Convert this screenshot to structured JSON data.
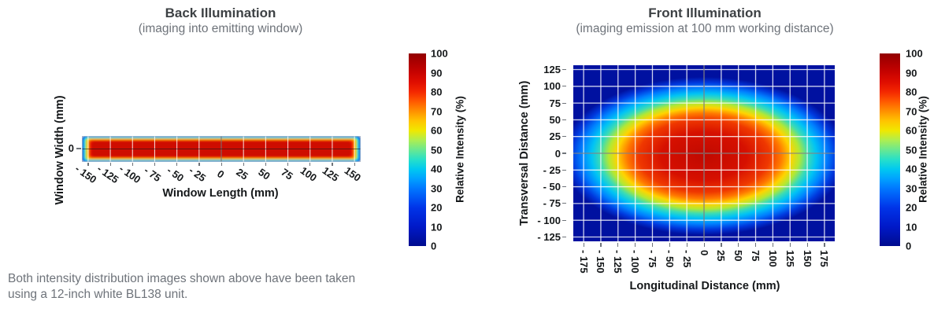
{
  "figure": {
    "caption_lines": [
      "Both intensity distribution images shown above have been taken",
      "using a 12-inch white BL138 unit."
    ]
  },
  "colorbar": {
    "label": "Relative Intensity (%)",
    "ticks": [
      0,
      10,
      20,
      30,
      40,
      50,
      60,
      70,
      80,
      90,
      100
    ]
  },
  "colormap": [
    {
      "v": 0,
      "c": "#000c8e"
    },
    {
      "v": 10,
      "c": "#0019c8"
    },
    {
      "v": 20,
      "c": "#0034e8"
    },
    {
      "v": 25,
      "c": "#0056f5"
    },
    {
      "v": 30,
      "c": "#0078ff"
    },
    {
      "v": 35,
      "c": "#00a2ff"
    },
    {
      "v": 40,
      "c": "#00c9f0"
    },
    {
      "v": 45,
      "c": "#28e0c8"
    },
    {
      "v": 50,
      "c": "#6ae890"
    },
    {
      "v": 55,
      "c": "#aeee50"
    },
    {
      "v": 60,
      "c": "#f0e800"
    },
    {
      "v": 65,
      "c": "#ffc400"
    },
    {
      "v": 70,
      "c": "#ff9000"
    },
    {
      "v": 75,
      "c": "#ff5a00"
    },
    {
      "v": 80,
      "c": "#f42800"
    },
    {
      "v": 85,
      "c": "#e00e00"
    },
    {
      "v": 90,
      "c": "#c80300"
    },
    {
      "v": 95,
      "c": "#ae0000"
    },
    {
      "v": 100,
      "c": "#920000"
    }
  ],
  "back": {
    "title": "Back Illumination",
    "subtitle": "(imaging into emitting window)",
    "xlabel": "Window Length (mm)",
    "ylabel": "Window Width (mm)",
    "x_range": [
      -157,
      157
    ],
    "y_range": [
      -14.7,
      14.7
    ],
    "x_ticks": {
      "values": [
        -150,
        -125,
        -100,
        -75,
        -50,
        -25,
        0,
        25,
        50,
        75,
        100,
        125,
        150
      ],
      "labels": [
        "- 150",
        "- 125",
        "- 100",
        "- 75",
        "- 50",
        "- 25",
        "0",
        "25",
        "50",
        "75",
        "100",
        "125",
        "150"
      ]
    },
    "y_ticks": {
      "values": [
        0
      ],
      "labels": [
        "0"
      ]
    },
    "bands": [
      {
        "hx": 157,
        "hy": 14.7,
        "c": "#000d8e"
      },
      {
        "hx": 156,
        "hy": 14.1,
        "c": "#0070ff"
      },
      {
        "hx": 154.6,
        "hy": 13.3,
        "c": "#00dcf2"
      },
      {
        "hx": 153.2,
        "hy": 12.5,
        "c": "#86e60c"
      },
      {
        "hx": 151.9,
        "hy": 11.8,
        "c": "#ffd900"
      },
      {
        "hx": 150.4,
        "hy": 10.9,
        "c": "#ff7300"
      },
      {
        "hx": 148.6,
        "hy": 9.9,
        "c": "#ea1400"
      },
      {
        "hx": 146,
        "hy": 8.6,
        "c": "#ce0c00"
      }
    ]
  },
  "front": {
    "title": "Front Illumination",
    "subtitle": "(imaging emission at 100 mm working distance)",
    "xlabel": "Longitudinal Distance (mm)",
    "ylabel": "Transversal Distance (mm)",
    "x_range": [
      -190,
      190
    ],
    "y_range": [
      -131.5,
      131.5
    ],
    "x_ticks": {
      "values": [
        -175,
        -150,
        -125,
        -100,
        -75,
        -50,
        -25,
        0,
        25,
        50,
        75,
        100,
        125,
        150,
        175
      ],
      "labels": [
        "- 175",
        "- 150",
        "- 125",
        "- 100",
        "- 75",
        "- 50",
        "- 25",
        "0",
        "25",
        "50",
        "75",
        "100",
        "125",
        "150",
        "175"
      ]
    },
    "y_ticks": {
      "values": [
        125,
        100,
        75,
        50,
        25,
        0,
        -25,
        -50,
        -75,
        -100,
        -125
      ],
      "labels": [
        "125",
        "100",
        "75",
        "50",
        "25",
        "0",
        "- 25",
        "- 50",
        "- 75",
        "- 100",
        "- 125"
      ]
    },
    "radial_stops": [
      {
        "t": 0.0,
        "c": "#c00900"
      },
      {
        "t": 0.3,
        "c": "#d61000"
      },
      {
        "t": 0.46,
        "c": "#ef3800"
      },
      {
        "t": 0.54,
        "c": "#ff7800"
      },
      {
        "t": 0.61,
        "c": "#ffd400"
      },
      {
        "t": 0.67,
        "c": "#b4e832"
      },
      {
        "t": 0.73,
        "c": "#3cdcb4"
      },
      {
        "t": 0.79,
        "c": "#00c3f5"
      },
      {
        "t": 0.86,
        "c": "#0080ff"
      },
      {
        "t": 0.93,
        "c": "#0038dd"
      },
      {
        "t": 1.0,
        "c": "#0011a0"
      }
    ],
    "radial_scale": [
      207,
      118
    ],
    "radial_center_offset": 4
  },
  "chart_data": [
    {
      "type": "heatmap",
      "title": "Back Illumination",
      "subtitle": "(imaging into emitting window)",
      "xlabel": "Window Length (mm)",
      "ylabel": "Window Width (mm)",
      "xlim": [
        -157,
        157
      ],
      "ylim": [
        -15,
        15
      ],
      "x_ticks": [
        -150,
        -125,
        -100,
        -75,
        -50,
        -25,
        0,
        25,
        50,
        75,
        100,
        125,
        150
      ],
      "y_ticks": [
        0
      ],
      "grid": true,
      "colorbar": {
        "label": "Relative Intensity (%)",
        "range": [
          0,
          100
        ],
        "ticks": [
          0,
          10,
          20,
          30,
          40,
          50,
          60,
          70,
          80,
          90,
          100
        ],
        "colormap": "jet",
        "position": "right"
      },
      "peak": {
        "x": 0,
        "y": 0,
        "intensity_pct": 100
      },
      "iso_intensity_contours": [
        {
          "intensity_pct": 85,
          "half_length_mm": 146,
          "half_width_mm": 8.6
        },
        {
          "intensity_pct": 75,
          "half_length_mm": 149,
          "half_width_mm": 10
        },
        {
          "intensity_pct": 60,
          "half_length_mm": 152,
          "half_width_mm": 12
        },
        {
          "intensity_pct": 40,
          "half_length_mm": 155,
          "half_width_mm": 13.3
        },
        {
          "intensity_pct": 10,
          "half_length_mm": 157,
          "half_width_mm": 14.7
        }
      ],
      "description": "Nearly uniform high-intensity (>=85%) red core spanning about -146 to 146 mm along the window length and +/-9 mm across the window width, dropping sharply through the jet rainbow to ~0% at the window borders."
    },
    {
      "type": "heatmap",
      "title": "Front Illumination",
      "subtitle": "(imaging emission at 100 mm working distance)",
      "xlabel": "Longitudinal Distance (mm)",
      "ylabel": "Transversal Distance (mm)",
      "xlim": [
        -190,
        190
      ],
      "ylim": [
        -131.5,
        131.5
      ],
      "x_ticks": [
        -175,
        -150,
        -125,
        -100,
        -75,
        -50,
        -25,
        0,
        25,
        50,
        75,
        100,
        125,
        150,
        175
      ],
      "y_ticks": [
        125,
        100,
        75,
        50,
        25,
        0,
        -25,
        -50,
        -75,
        -100,
        -125
      ],
      "grid": true,
      "colorbar": {
        "label": "Relative Intensity (%)",
        "range": [
          0,
          100
        ],
        "ticks": [
          0,
          10,
          20,
          30,
          40,
          50,
          60,
          70,
          80,
          90,
          100
        ],
        "colormap": "jet",
        "position": "right"
      },
      "peak": {
        "x": 0,
        "y": -4,
        "intensity_pct": 100
      },
      "iso_intensity_contours": [
        {
          "intensity_pct": 90,
          "half_longitudinal_mm": 90,
          "half_transversal_mm": 40
        },
        {
          "intensity_pct": 80,
          "half_longitudinal_mm": 118,
          "half_transversal_mm": 58
        },
        {
          "intensity_pct": 60,
          "half_longitudinal_mm": 135,
          "half_transversal_mm": 70
        },
        {
          "intensity_pct": 40,
          "half_longitudinal_mm": 160,
          "half_transversal_mm": 90
        },
        {
          "intensity_pct": 30,
          "half_longitudinal_mm": 178,
          "half_transversal_mm": 105
        },
        {
          "intensity_pct": 20,
          "half_longitudinal_mm": 195,
          "half_transversal_mm": 125
        }
      ],
      "description": "Elliptical intensity distribution centered near the origin: dark-red core (~100%) out to roughly +/-90 mm longitudinal and +/-40 mm transversal, fading through yellow (~60%) at +/-135 x +/-70 mm and cyan/blue toward the dark-blue corners (~0-10%)."
    }
  ]
}
